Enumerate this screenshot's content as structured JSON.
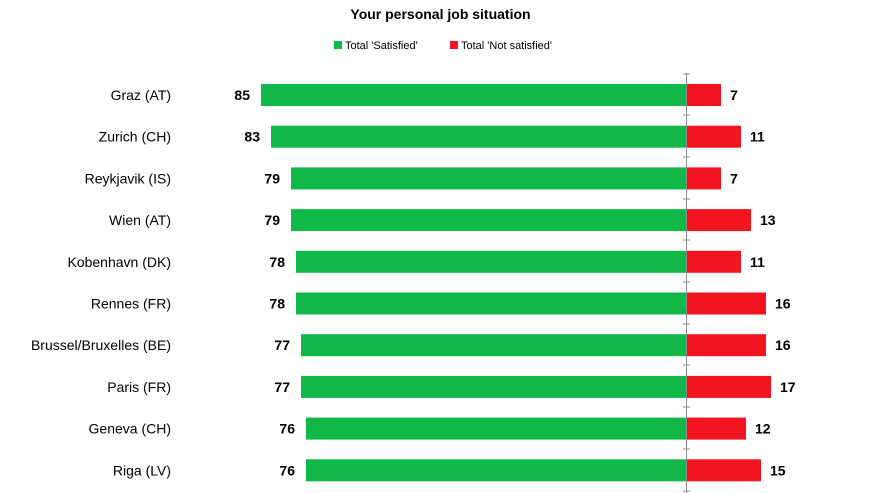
{
  "chart_data": {
    "type": "bar",
    "orientation": "horizontal-diverging",
    "title": "Your personal job situation",
    "categories": [
      "Graz (AT)",
      "Zurich (CH)",
      "Reykjavik (IS)",
      "Wien (AT)",
      "Kobenhavn (DK)",
      "Rennes (FR)",
      "Brussel/Bruxelles (BE)",
      "Paris (FR)",
      "Geneva (CH)",
      "Riga (LV)"
    ],
    "series": [
      {
        "name": "Total 'Satisfied'",
        "color": "#10b847",
        "direction": "left",
        "values": [
          85,
          83,
          79,
          79,
          78,
          78,
          77,
          77,
          76,
          76
        ]
      },
      {
        "name": "Total 'Not satisfied'",
        "color": "#f2141f",
        "direction": "right",
        "values": [
          7,
          11,
          7,
          13,
          11,
          16,
          16,
          17,
          12,
          15
        ]
      }
    ],
    "grid": false,
    "legend_position": "top-center",
    "axis_color": "#8c8c8c"
  }
}
